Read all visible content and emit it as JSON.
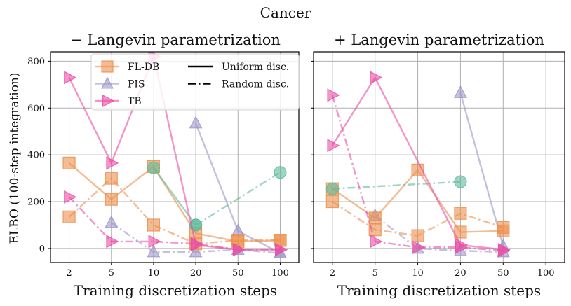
{
  "chart_data": {
    "type": "line",
    "suptitle": "Cancer",
    "ylabel": "ELBO (100-step integration)",
    "xlabel": "Training discretization steps",
    "x_categories": [
      "2",
      "5",
      "10",
      "20",
      "50",
      "100"
    ],
    "y_ticks": [
      0,
      200,
      400,
      600,
      800
    ],
    "ylim": [
      -60,
      840
    ],
    "colors": {
      "fldb": "#ec904c",
      "pis": "#9d97c9",
      "tb": "#ea4ea5",
      "extra": "#5ebb9a"
    },
    "legend": {
      "methods": [
        {
          "key": "fldb",
          "label": "FL-DB",
          "marker": "square"
        },
        {
          "key": "pis",
          "label": "PIS",
          "marker": "triangle-up"
        },
        {
          "key": "tb",
          "label": "TB",
          "marker": "triangle-right"
        }
      ],
      "styles": [
        {
          "label": "Uniform disc.",
          "dash": "solid"
        },
        {
          "label": "Random disc.",
          "dash": "dashdot"
        }
      ]
    },
    "panels": [
      {
        "title": "− Langevin parametrization",
        "show_yticklabels": true,
        "show_legend": true,
        "series": [
          {
            "method": "pis",
            "dash": "solid",
            "marker": "triangle-up",
            "x": [
              20,
              50,
              100
            ],
            "y": [
              535,
              75,
              -20
            ]
          },
          {
            "method": "pis",
            "dash": "dashdot",
            "marker": "triangle-up",
            "x": [
              5,
              10,
              20,
              50,
              100
            ],
            "y": [
              110,
              -15,
              -15,
              -5,
              -20
            ]
          },
          {
            "method": "fldb",
            "dash": "solid",
            "marker": "square",
            "x": [
              2,
              5,
              10,
              20,
              50,
              100
            ],
            "y": [
              365,
              210,
              350,
              65,
              30,
              35
            ]
          },
          {
            "method": "fldb",
            "dash": "dashdot",
            "marker": "square",
            "x": [
              2,
              5,
              10,
              20,
              50,
              100
            ],
            "y": [
              135,
              300,
              100,
              20,
              35,
              35
            ]
          },
          {
            "method": "extra",
            "dash": "solid",
            "marker": "circle",
            "x": [
              10,
              20
            ],
            "y": [
              345,
              100
            ]
          },
          {
            "method": "extra",
            "dash": "dashdot",
            "marker": "circle",
            "x": [
              20,
              100
            ],
            "y": [
              100,
              325
            ]
          },
          {
            "method": "tb",
            "dash": "solid",
            "marker": "triangle-right",
            "x": [
              2,
              5,
              10,
              20,
              50,
              100
            ],
            "y": [
              730,
              365,
              820,
              15,
              -5,
              -5
            ]
          },
          {
            "method": "tb",
            "dash": "dashdot",
            "marker": "triangle-right",
            "x": [
              2,
              5,
              10,
              20,
              50,
              100
            ],
            "y": [
              220,
              30,
              30,
              20,
              -5,
              -5
            ]
          }
        ]
      },
      {
        "title": "+ Langevin parametrization",
        "show_yticklabels": false,
        "show_legend": false,
        "series": [
          {
            "method": "pis",
            "dash": "solid",
            "marker": "triangle-up",
            "x": [
              20,
              50
            ],
            "y": [
              665,
              10
            ]
          },
          {
            "method": "pis",
            "dash": "dashdot",
            "marker": "triangle-up",
            "x": [
              5,
              10,
              20,
              50
            ],
            "y": [
              140,
              0,
              -10,
              -15
            ]
          },
          {
            "method": "fldb",
            "dash": "solid",
            "marker": "square",
            "x": [
              2,
              5,
              10,
              20,
              50
            ],
            "y": [
              255,
              130,
              335,
              70,
              75
            ]
          },
          {
            "method": "fldb",
            "dash": "dashdot",
            "marker": "square",
            "x": [
              2,
              5,
              10,
              20,
              50
            ],
            "y": [
              200,
              80,
              55,
              150,
              90
            ]
          },
          {
            "method": "extra",
            "dash": "dashdot",
            "marker": "circle",
            "x": [
              2,
              20
            ],
            "y": [
              255,
              285
            ]
          },
          {
            "method": "tb",
            "dash": "solid",
            "marker": "triangle-right",
            "x": [
              2,
              5,
              20,
              50
            ],
            "y": [
              440,
              730,
              15,
              -5
            ]
          },
          {
            "method": "tb",
            "dash": "dashdot",
            "marker": "triangle-right",
            "x": [
              2,
              5,
              10,
              20,
              50
            ],
            "y": [
              655,
              30,
              5,
              5,
              -10
            ]
          }
        ]
      }
    ]
  }
}
